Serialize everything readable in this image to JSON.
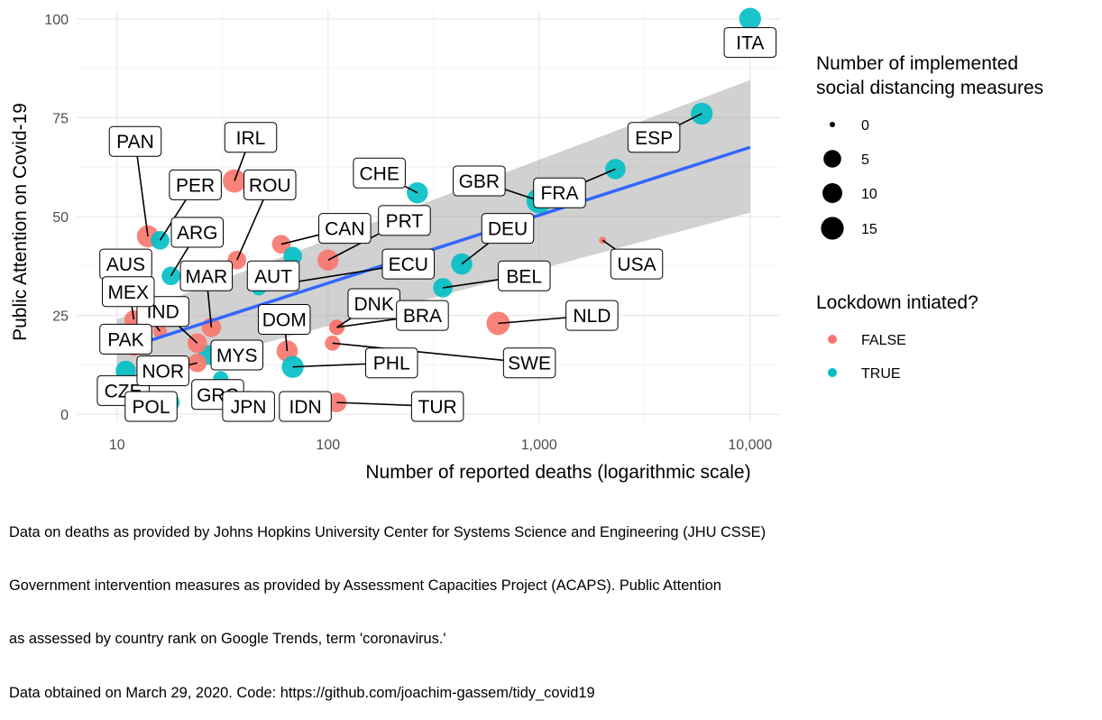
{
  "chart_data": {
    "type": "scatter",
    "title": "",
    "xlabel": "Number of reported deaths (logarithmic scale)",
    "ylabel": "Public Attention on Covid-19",
    "x_scale": "log10",
    "xlim": [
      6.5,
      14000
    ],
    "ylim": [
      -2,
      102
    ],
    "x_ticks": [
      10,
      100,
      1000,
      10000
    ],
    "x_tick_labels": [
      "10",
      "100",
      "1,000",
      "10,000"
    ],
    "y_ticks": [
      0,
      25,
      50,
      75,
      100
    ],
    "y_tick_labels": [
      "0",
      "25",
      "50",
      "75",
      "100"
    ],
    "grid": true,
    "smooth": {
      "method": "linear (log x)",
      "color": "#3366FF",
      "line": [
        [
          10,
          16
        ],
        [
          10000,
          67.5
        ]
      ],
      "ci_upper": [
        [
          10,
          24
        ],
        [
          10000,
          84.5
        ]
      ],
      "ci_lower": [
        [
          10,
          8
        ],
        [
          10000,
          51
        ]
      ]
    },
    "colors": {
      "FALSE": "#F8766D",
      "TRUE": "#00BFC4"
    },
    "points": [
      {
        "label": "ITA",
        "deaths": 10000,
        "attention": 100,
        "lockdown": true,
        "measures": 10,
        "lab": [
          10000,
          94
        ]
      },
      {
        "label": "ESP",
        "deaths": 5900,
        "attention": 76,
        "lockdown": true,
        "measures": 10,
        "lab": [
          3500,
          70
        ]
      },
      {
        "label": "FRA",
        "deaths": 2300,
        "attention": 62,
        "lockdown": true,
        "measures": 8,
        "lab": [
          1250,
          56
        ]
      },
      {
        "label": "GBR",
        "deaths": 1000,
        "attention": 54,
        "lockdown": true,
        "measures": 15,
        "lab": [
          520,
          59
        ]
      },
      {
        "label": "USA",
        "deaths": 2000,
        "attention": 44,
        "lockdown": false,
        "measures": 0,
        "lab": [
          2900,
          38
        ]
      },
      {
        "label": "CHE",
        "deaths": 265,
        "attention": 56,
        "lockdown": true,
        "measures": 9,
        "lab": [
          175,
          61
        ]
      },
      {
        "label": "NLD",
        "deaths": 640,
        "attention": 23,
        "lockdown": false,
        "measures": 12,
        "lab": [
          1780,
          25
        ]
      },
      {
        "label": "BEL",
        "deaths": 350,
        "attention": 32,
        "lockdown": true,
        "measures": 7,
        "lab": [
          850,
          35
        ]
      },
      {
        "label": "DEU",
        "deaths": 430,
        "attention": 38,
        "lockdown": true,
        "measures": 9,
        "lab": [
          710,
          47
        ]
      },
      {
        "label": "IRL",
        "deaths": 36,
        "attention": 59,
        "lockdown": false,
        "measures": 12,
        "lab": [
          43,
          70
        ]
      },
      {
        "label": "PAN",
        "deaths": 14,
        "attention": 45,
        "lockdown": false,
        "measures": 10,
        "lab": [
          12.2,
          69
        ]
      },
      {
        "label": "PER",
        "deaths": 16,
        "attention": 44,
        "lockdown": true,
        "measures": 6,
        "lab": [
          23.5,
          58
        ]
      },
      {
        "label": "ARG",
        "deaths": 18,
        "attention": 35,
        "lockdown": true,
        "measures": 6,
        "lab": [
          24,
          46
        ]
      },
      {
        "label": "ROU",
        "deaths": 37,
        "attention": 39,
        "lockdown": false,
        "measures": 6,
        "lab": [
          53,
          58
        ]
      },
      {
        "label": "CAN",
        "deaths": 60,
        "attention": 43,
        "lockdown": false,
        "measures": 6,
        "lab": [
          120,
          47
        ]
      },
      {
        "label": "AUT",
        "deaths": 68,
        "attention": 40,
        "lockdown": true,
        "measures": 6,
        "lab": [
          55,
          35
        ]
      },
      {
        "label": "PRT",
        "deaths": 100,
        "attention": 39,
        "lockdown": false,
        "measures": 9,
        "lab": [
          230,
          49
        ]
      },
      {
        "label": "ECU",
        "deaths": 47,
        "attention": 32,
        "lockdown": true,
        "measures": 3,
        "lab": [
          240,
          38
        ]
      },
      {
        "label": "DNK",
        "deaths": 110,
        "attention": 22,
        "lockdown": false,
        "measures": 3,
        "lab": [
          165,
          28
        ]
      },
      {
        "label": "SWE",
        "deaths": 105,
        "attention": 18,
        "lockdown": false,
        "measures": 3,
        "lab": [
          900,
          13
        ]
      },
      {
        "label": "DOM",
        "deaths": 64,
        "attention": 16,
        "lockdown": false,
        "measures": 9,
        "lab": [
          62,
          24
        ]
      },
      {
        "label": "PHL",
        "deaths": 68,
        "attention": 12,
        "lockdown": true,
        "measures": 10,
        "lab": [
          200,
          13
        ]
      },
      {
        "label": "BRA",
        "deaths": 110,
        "attention": 22,
        "lockdown": false,
        "measures": 3,
        "lab": [
          280,
          25
        ]
      },
      {
        "label": "MYS",
        "deaths": 27,
        "attention": 15,
        "lockdown": true,
        "measures": 7,
        "lab": [
          37,
          15
        ]
      },
      {
        "label": "TUR",
        "deaths": 110,
        "attention": 3,
        "lockdown": false,
        "measures": 7,
        "lab": [
          330,
          2
        ]
      },
      {
        "label": "IDN",
        "deaths": 75,
        "attention": 2,
        "lockdown": false,
        "measures": 3,
        "lab": [
          78,
          2
        ]
      },
      {
        "label": "MAR",
        "deaths": 28,
        "attention": 22,
        "lockdown": false,
        "measures": 7,
        "lab": [
          26.5,
          35
        ]
      },
      {
        "label": "IND",
        "deaths": 24,
        "attention": 18,
        "lockdown": false,
        "measures": 7,
        "lab": [
          16.5,
          26
        ]
      },
      {
        "label": "AUS",
        "deaths": 12,
        "attention": 24,
        "lockdown": false,
        "measures": 6,
        "lab": [
          11,
          38
        ]
      },
      {
        "label": "MEX",
        "deaths": 16,
        "attention": 21,
        "lockdown": false,
        "measures": 2,
        "lab": [
          11.3,
          31
        ]
      },
      {
        "label": "PAK",
        "deaths": 12,
        "attention": 17,
        "lockdown": false,
        "measures": 5,
        "lab": [
          11,
          19
        ]
      },
      {
        "label": "CZE",
        "deaths": 11,
        "attention": 11,
        "lockdown": true,
        "measures": 8,
        "lab": [
          10.7,
          6
        ]
      },
      {
        "label": "NOR",
        "deaths": 24,
        "attention": 13,
        "lockdown": false,
        "measures": 6,
        "lab": [
          16.5,
          11
        ]
      },
      {
        "label": "POL",
        "deaths": 18,
        "attention": 3,
        "lockdown": true,
        "measures": 5,
        "lab": [
          14.5,
          2
        ]
      },
      {
        "label": "GRC",
        "deaths": 31,
        "attention": 9,
        "lockdown": true,
        "measures": 3,
        "lab": [
          30,
          5
        ]
      },
      {
        "label": "JPN",
        "deaths": 42,
        "attention": 4,
        "lockdown": true,
        "measures": 3,
        "lab": [
          42,
          2
        ]
      }
    ],
    "legend": {
      "position": "right",
      "size": {
        "title_lines": [
          "Number of implemented",
          "social distancing measures"
        ],
        "entries": [
          {
            "label": "0",
            "value": 0
          },
          {
            "label": "5",
            "value": 5
          },
          {
            "label": "10",
            "value": 10
          },
          {
            "label": "15",
            "value": 15
          }
        ]
      },
      "color": {
        "title": "Lockdown intiated?",
        "entries": [
          {
            "label": "FALSE",
            "color": "#F8766D"
          },
          {
            "label": "TRUE",
            "color": "#00BFC4"
          }
        ]
      }
    }
  },
  "caption": {
    "lines": [
      "Data on deaths as provided by Johns Hopkins University Center for Systems Science and Engineering (JHU CSSE)",
      "Government intervention measures as provided by Assessment Capacities Project (ACAPS). Public Attention",
      "as assessed by country rank on Google Trends, term 'coronavirus.'",
      "Data obtained on March 29, 2020. Code: https://github.com/joachim-gassem/tidy_covid19"
    ]
  }
}
